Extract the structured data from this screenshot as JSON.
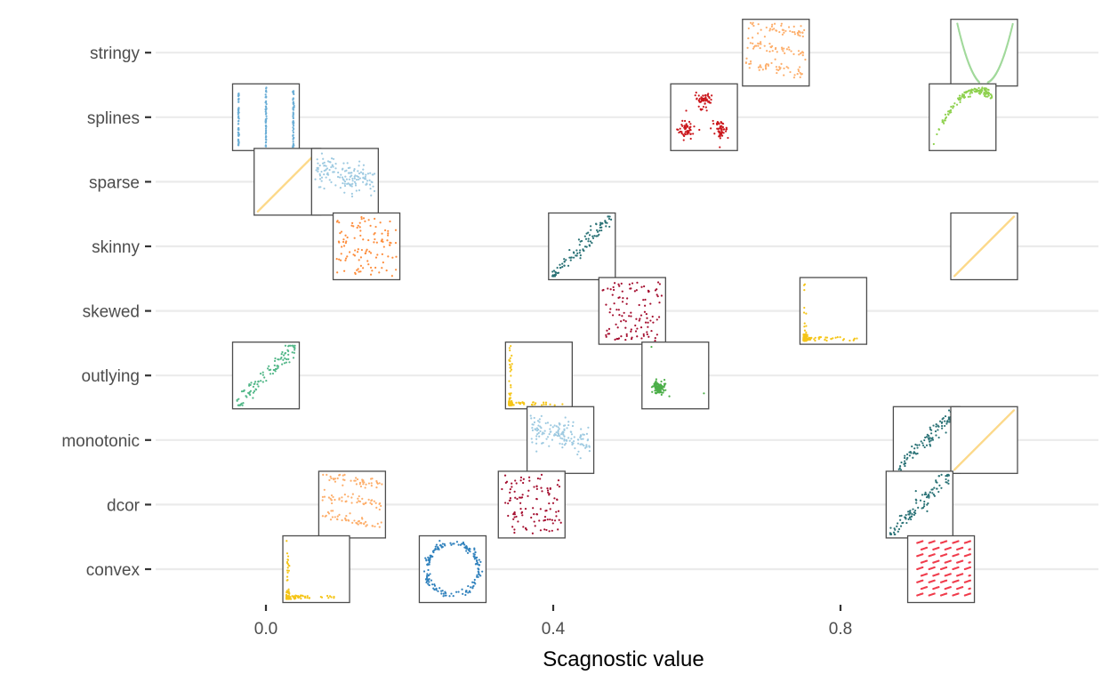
{
  "chart_data": {
    "type": "scatter",
    "xlabel": "Scagnostic value",
    "ylabel": "",
    "xlim": [
      -0.19,
      1.15
    ],
    "x_ticks": [
      "0.0",
      "0.4",
      "0.8"
    ],
    "x_tick_values": [
      0.0,
      0.4,
      0.8
    ],
    "grid": "horizontal major lines only",
    "legend": "none",
    "categories": [
      "convex",
      "dcor",
      "monotonic",
      "outlying",
      "skewed",
      "skinny",
      "sparse",
      "splines",
      "stringy"
    ],
    "points": [
      {
        "category": "stringy",
        "x": 0.71,
        "pattern": "bands",
        "color": "#fdae6b"
      },
      {
        "category": "stringy",
        "x": 1.0,
        "pattern": "parabola-line",
        "color": "#a1d99b"
      },
      {
        "category": "splines",
        "x": 0.0,
        "pattern": "vertical-stripes",
        "color": "#6baed6"
      },
      {
        "category": "splines",
        "x": 0.61,
        "pattern": "clusters",
        "color": "#cb181d"
      },
      {
        "category": "splines",
        "x": 0.97,
        "pattern": "arc",
        "color": "#8fd14f"
      },
      {
        "category": "sparse",
        "x": 0.03,
        "pattern": "line",
        "color": "#fcd98a"
      },
      {
        "category": "sparse",
        "x": 0.11,
        "pattern": "noisy-band",
        "color": "#9ecae1"
      },
      {
        "category": "skinny",
        "x": 0.14,
        "pattern": "uniform",
        "color": "#fd8d3c"
      },
      {
        "category": "skinny",
        "x": 0.44,
        "pattern": "linear",
        "color": "#2a7276"
      },
      {
        "category": "skinny",
        "x": 1.0,
        "pattern": "line",
        "color": "#fcd98a"
      },
      {
        "category": "skewed",
        "x": 0.51,
        "pattern": "uniform",
        "color": "#a50f30"
      },
      {
        "category": "skewed",
        "x": 0.79,
        "pattern": "skew-L",
        "color": "#f5c518"
      },
      {
        "category": "outlying",
        "x": 0.0,
        "pattern": "linear",
        "color": "#52b788"
      },
      {
        "category": "outlying",
        "x": 0.38,
        "pattern": "skew-L",
        "color": "#f5c518"
      },
      {
        "category": "outlying",
        "x": 0.57,
        "pattern": "cluster-outliers",
        "color": "#4daf4a"
      },
      {
        "category": "monotonic",
        "x": 0.41,
        "pattern": "noisy-band",
        "color": "#9ecae1"
      },
      {
        "category": "monotonic",
        "x": 0.92,
        "pattern": "linear",
        "color": "#2a7276"
      },
      {
        "category": "monotonic",
        "x": 1.0,
        "pattern": "line",
        "color": "#fcd98a"
      },
      {
        "category": "dcor",
        "x": 0.12,
        "pattern": "bands",
        "color": "#fdae6b"
      },
      {
        "category": "dcor",
        "x": 0.37,
        "pattern": "uniform",
        "color": "#a50f30"
      },
      {
        "category": "dcor",
        "x": 0.91,
        "pattern": "linear",
        "color": "#2a7276"
      },
      {
        "category": "convex",
        "x": 0.07,
        "pattern": "skew-L",
        "color": "#f5c518"
      },
      {
        "category": "convex",
        "x": 0.26,
        "pattern": "ring",
        "color": "#3182bd"
      },
      {
        "category": "convex",
        "x": 0.94,
        "pattern": "dashes",
        "color": "#f03b4b"
      }
    ]
  }
}
